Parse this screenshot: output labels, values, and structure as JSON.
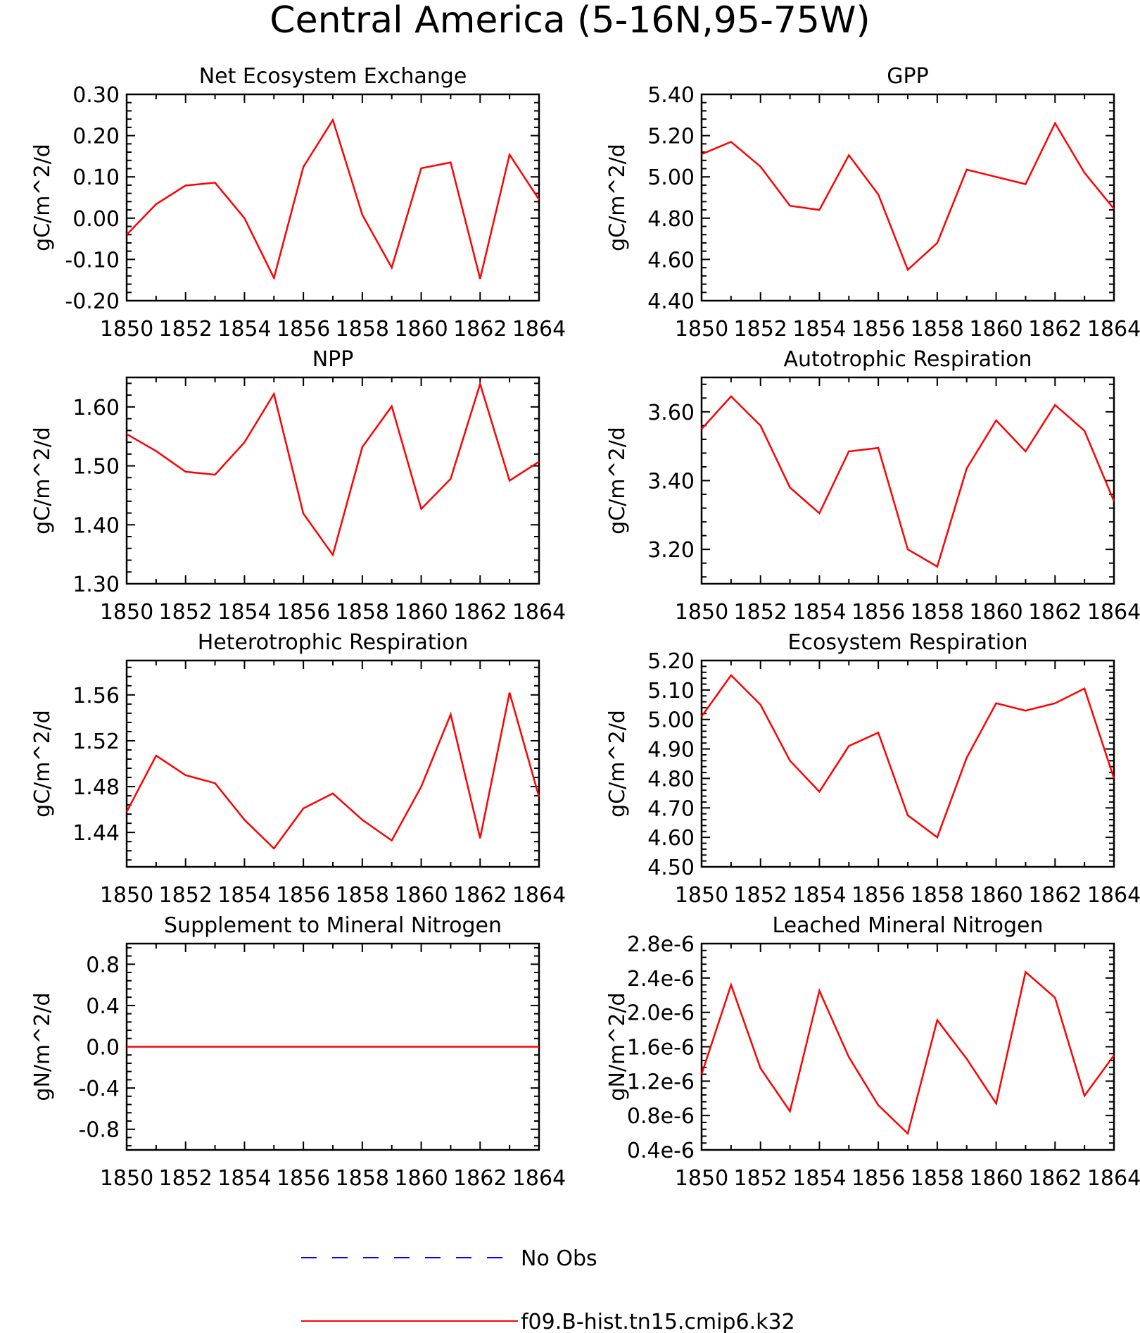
{
  "figure_title": "Central America (5-16N,95-75W)",
  "legend": {
    "entries": [
      {
        "label": "No Obs",
        "color": "#0000ff",
        "style": "dashed"
      },
      {
        "label": "f09.B-hist.tn15.cmip6.k32",
        "color": "#ff0000",
        "style": "solid"
      }
    ]
  },
  "chart_data": [
    {
      "type": "line",
      "title": "Net Ecosystem Exchange",
      "ylabel": "gC/m^2/d",
      "x": [
        1850,
        1851,
        1852,
        1853,
        1854,
        1855,
        1856,
        1857,
        1858,
        1859,
        1860,
        1861,
        1862,
        1863,
        1864
      ],
      "xlim": [
        1850,
        1864
      ],
      "xticks": [
        "1850",
        "1852",
        "1854",
        "1856",
        "1858",
        "1860",
        "1862",
        "1864"
      ],
      "ylim": [
        -0.2,
        0.3
      ],
      "yticks": [
        "-0.20",
        "-0.10",
        "0.00",
        "0.10",
        "0.20",
        "0.30"
      ],
      "ytick_values": [
        -0.2,
        -0.1,
        0.0,
        0.1,
        0.2,
        0.3
      ],
      "series": [
        {
          "color": "#ff0000",
          "values": [
            -0.04,
            0.034,
            0.079,
            0.086,
            0.0,
            -0.145,
            0.124,
            0.238,
            0.008,
            -0.12,
            0.121,
            0.135,
            -0.147,
            0.154,
            0.045
          ]
        }
      ]
    },
    {
      "type": "line",
      "title": "GPP",
      "ylabel": "gC/m^2/d",
      "x": [
        1850,
        1851,
        1852,
        1853,
        1854,
        1855,
        1856,
        1857,
        1858,
        1859,
        1860,
        1861,
        1862,
        1863,
        1864
      ],
      "xlim": [
        1850,
        1864
      ],
      "xticks": [
        "1850",
        "1852",
        "1854",
        "1856",
        "1858",
        "1860",
        "1862",
        "1864"
      ],
      "ylim": [
        4.4,
        5.4
      ],
      "yticks": [
        "4.40",
        "4.60",
        "4.80",
        "5.00",
        "5.20",
        "5.40"
      ],
      "ytick_values": [
        4.4,
        4.6,
        4.8,
        5.0,
        5.2,
        5.4
      ],
      "series": [
        {
          "color": "#ff0000",
          "values": [
            5.11,
            5.17,
            5.05,
            4.86,
            4.84,
            5.105,
            4.915,
            4.55,
            4.68,
            5.035,
            5.0,
            4.965,
            5.26,
            5.02,
            4.845
          ]
        }
      ]
    },
    {
      "type": "line",
      "title": "NPP",
      "ylabel": "gC/m^2/d",
      "x": [
        1850,
        1851,
        1852,
        1853,
        1854,
        1855,
        1856,
        1857,
        1858,
        1859,
        1860,
        1861,
        1862,
        1863,
        1864
      ],
      "xlim": [
        1850,
        1864
      ],
      "xticks": [
        "1850",
        "1852",
        "1854",
        "1856",
        "1858",
        "1860",
        "1862",
        "1864"
      ],
      "ylim": [
        1.3,
        1.65
      ],
      "yticks": [
        "1.30",
        "1.40",
        "1.50",
        "1.60"
      ],
      "ytick_values": [
        1.3,
        1.4,
        1.5,
        1.6
      ],
      "series": [
        {
          "color": "#ff0000",
          "values": [
            1.554,
            1.525,
            1.49,
            1.485,
            1.54,
            1.622,
            1.419,
            1.349,
            1.532,
            1.601,
            1.427,
            1.478,
            1.639,
            1.475,
            1.507
          ]
        }
      ]
    },
    {
      "type": "line",
      "title": "Autotrophic Respiration",
      "ylabel": "gC/m^2/d",
      "x": [
        1850,
        1851,
        1852,
        1853,
        1854,
        1855,
        1856,
        1857,
        1858,
        1859,
        1860,
        1861,
        1862,
        1863,
        1864
      ],
      "xlim": [
        1850,
        1864
      ],
      "xticks": [
        "1850",
        "1852",
        "1854",
        "1856",
        "1858",
        "1860",
        "1862",
        "1864"
      ],
      "ylim": [
        3.1,
        3.7
      ],
      "yticks": [
        "3.20",
        "3.40",
        "3.60"
      ],
      "ytick_values": [
        3.2,
        3.4,
        3.6
      ],
      "series": [
        {
          "color": "#ff0000",
          "values": [
            3.55,
            3.645,
            3.56,
            3.38,
            3.305,
            3.485,
            3.495,
            3.2,
            3.15,
            3.435,
            3.575,
            3.485,
            3.62,
            3.545,
            3.34
          ]
        }
      ]
    },
    {
      "type": "line",
      "title": "Heterotrophic Respiration",
      "ylabel": "gC/m^2/d",
      "x": [
        1850,
        1851,
        1852,
        1853,
        1854,
        1855,
        1856,
        1857,
        1858,
        1859,
        1860,
        1861,
        1862,
        1863,
        1864
      ],
      "xlim": [
        1850,
        1864
      ],
      "xticks": [
        "1850",
        "1852",
        "1854",
        "1856",
        "1858",
        "1860",
        "1862",
        "1864"
      ],
      "ylim": [
        1.41,
        1.59
      ],
      "yticks": [
        "1.44",
        "1.48",
        "1.52",
        "1.56"
      ],
      "ytick_values": [
        1.44,
        1.48,
        1.52,
        1.56
      ],
      "series": [
        {
          "color": "#ff0000",
          "values": [
            1.458,
            1.507,
            1.49,
            1.483,
            1.451,
            1.426,
            1.461,
            1.474,
            1.451,
            1.433,
            1.48,
            1.543,
            1.435,
            1.562,
            1.471
          ]
        }
      ]
    },
    {
      "type": "line",
      "title": "Ecosystem Respiration",
      "ylabel": "gC/m^2/d",
      "x": [
        1850,
        1851,
        1852,
        1853,
        1854,
        1855,
        1856,
        1857,
        1858,
        1859,
        1860,
        1861,
        1862,
        1863,
        1864
      ],
      "xlim": [
        1850,
        1864
      ],
      "xticks": [
        "1850",
        "1852",
        "1854",
        "1856",
        "1858",
        "1860",
        "1862",
        "1864"
      ],
      "ylim": [
        4.5,
        5.2
      ],
      "yticks": [
        "4.50",
        "4.60",
        "4.70",
        "4.80",
        "4.90",
        "5.00",
        "5.10",
        "5.20"
      ],
      "ytick_values": [
        4.5,
        4.6,
        4.7,
        4.8,
        4.9,
        5.0,
        5.1,
        5.2
      ],
      "series": [
        {
          "color": "#ff0000",
          "values": [
            5.01,
            5.15,
            5.05,
            4.86,
            4.755,
            4.91,
            4.955,
            4.675,
            4.6,
            4.87,
            5.055,
            5.03,
            5.055,
            5.105,
            4.8
          ]
        }
      ]
    },
    {
      "type": "line",
      "title": "Supplement to Mineral Nitrogen",
      "ylabel": "gN/m^2/d",
      "x": [
        1850,
        1851,
        1852,
        1853,
        1854,
        1855,
        1856,
        1857,
        1858,
        1859,
        1860,
        1861,
        1862,
        1863,
        1864
      ],
      "xlim": [
        1850,
        1864
      ],
      "xticks": [
        "1850",
        "1852",
        "1854",
        "1856",
        "1858",
        "1860",
        "1862",
        "1864"
      ],
      "ylim": [
        -1.0,
        1.0
      ],
      "yticks": [
        "-0.8",
        "-0.4",
        "0.0",
        "0.4",
        "0.8"
      ],
      "ytick_values": [
        -0.8,
        -0.4,
        0.0,
        0.4,
        0.8
      ],
      "series": [
        {
          "color": "#ff0000",
          "values": [
            0,
            0,
            0,
            0,
            0,
            0,
            0,
            0,
            0,
            0,
            0,
            0,
            0,
            0,
            0
          ]
        }
      ]
    },
    {
      "type": "line",
      "title": "Leached Mineral Nitrogen",
      "ylabel": "gN/m^2/d",
      "x": [
        1850,
        1851,
        1852,
        1853,
        1854,
        1855,
        1856,
        1857,
        1858,
        1859,
        1860,
        1861,
        1862,
        1863,
        1864
      ],
      "xlim": [
        1850,
        1864
      ],
      "xticks": [
        "1850",
        "1852",
        "1854",
        "1856",
        "1858",
        "1860",
        "1862",
        "1864"
      ],
      "ylim": [
        4e-07,
        2.8e-06
      ],
      "yticks": [
        "0.4e-6",
        "0.8e-6",
        "1.2e-6",
        "1.6e-6",
        "2.0e-6",
        "2.4e-6",
        "2.8e-6"
      ],
      "ytick_values": [
        4e-07,
        8e-07,
        1.2e-06,
        1.6e-06,
        2e-06,
        2.4e-06,
        2.8e-06
      ],
      "series": [
        {
          "color": "#ff0000",
          "values": [
            1.28e-06,
            2.32e-06,
            1.35e-06,
            8.5e-07,
            2.25e-06,
            1.48e-06,
            9.2e-07,
            5.9e-07,
            1.91e-06,
            1.46e-06,
            9.4e-07,
            2.47e-06,
            2.17e-06,
            1.03e-06,
            1.5e-06
          ]
        }
      ]
    }
  ]
}
